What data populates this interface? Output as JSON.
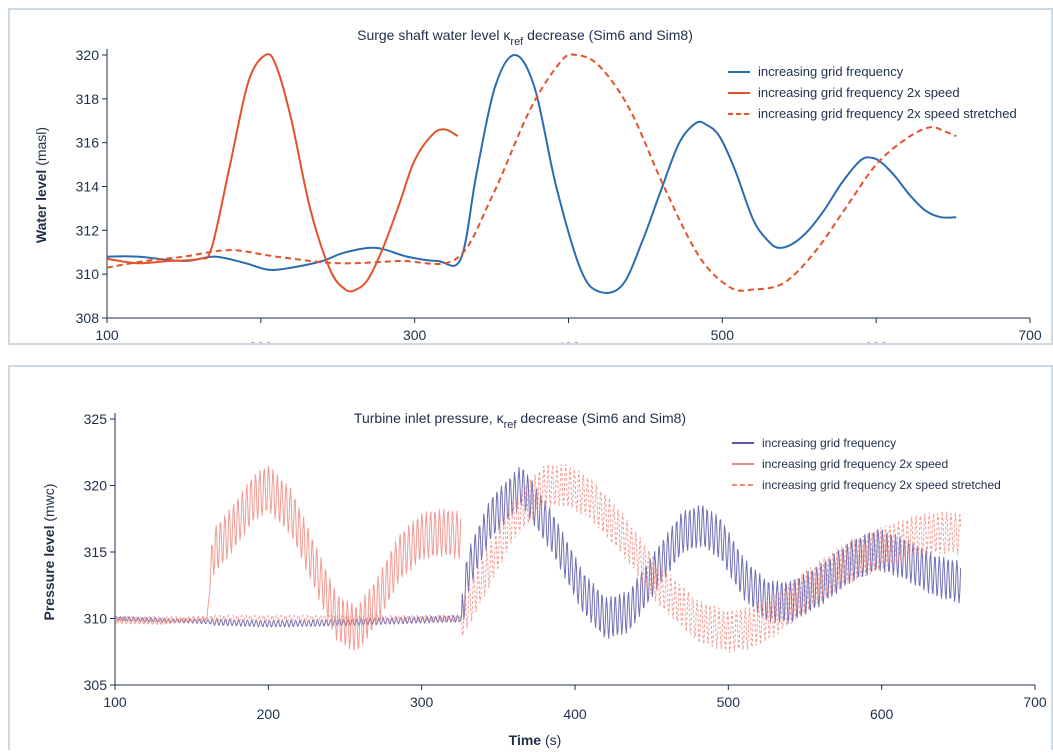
{
  "chart_data": [
    {
      "type": "line",
      "title_main": "Surge shaft water level κ",
      "title_sub": "ref",
      "title_tail": " decrease (Sim6 and Sim8)",
      "ylabel_bold": "Water level",
      "ylabel_unit": " (masl)",
      "xlabel_bold": "",
      "xlabel_unit": "",
      "xlim": [
        100,
        700
      ],
      "ylim": [
        308,
        320
      ],
      "xticks": [
        "100",
        "200",
        "300",
        "400",
        "500",
        "600",
        "700"
      ],
      "yticks": [
        "308",
        "310",
        "312",
        "314",
        "316",
        "318",
        "320"
      ],
      "grid": false,
      "legend_position": "top-right",
      "series": [
        {
          "name": "increasing grid frequency",
          "color": "#2b6cb0",
          "style": "solid",
          "x": [
            100,
            120,
            150,
            170,
            190,
            205,
            220,
            240,
            255,
            275,
            295,
            315,
            330,
            340,
            352,
            365,
            378,
            392,
            408,
            420,
            435,
            448,
            460,
            472,
            483,
            490,
            498,
            508,
            520,
            530,
            537,
            546,
            556,
            566,
            578,
            590,
            598,
            605,
            613,
            622,
            632,
            642,
            652
          ],
          "y": [
            310.8,
            310.8,
            310.6,
            310.8,
            310.5,
            310.2,
            310.3,
            310.6,
            311.0,
            311.2,
            310.8,
            310.6,
            310.7,
            314.5,
            318.5,
            320.0,
            318.5,
            314.0,
            310.2,
            309.2,
            309.5,
            311.5,
            313.8,
            316.0,
            316.9,
            316.8,
            316.3,
            314.8,
            312.5,
            311.5,
            311.2,
            311.4,
            312.0,
            312.9,
            314.2,
            315.2,
            315.3,
            315.0,
            314.4,
            313.6,
            312.9,
            312.6,
            312.6
          ]
        },
        {
          "name": "increasing grid frequency 2x speed",
          "color": "#e2522b",
          "style": "solid",
          "x": [
            100,
            120,
            140,
            160,
            168,
            180,
            192,
            203,
            210,
            220,
            232,
            245,
            255,
            262,
            270,
            280,
            290,
            300,
            312,
            320,
            328
          ],
          "y": [
            310.7,
            310.5,
            310.6,
            310.7,
            311.2,
            315.0,
            318.8,
            320.0,
            319.5,
            317.0,
            313.0,
            310.2,
            309.3,
            309.3,
            309.8,
            311.3,
            313.2,
            315.2,
            316.4,
            316.6,
            316.3
          ]
        },
        {
          "name": "increasing grid frequency 2x speed stretched",
          "color": "#e2522b",
          "style": "dashed",
          "x": [
            100,
            125,
            150,
            180,
            210,
            250,
            290,
            327,
            350,
            375,
            395,
            405,
            420,
            440,
            462,
            485,
            505,
            520,
            540,
            560,
            580,
            600,
            620,
            635,
            645,
            652
          ],
          "y": [
            310.3,
            310.6,
            310.8,
            311.1,
            310.8,
            310.5,
            310.6,
            310.7,
            313.5,
            317.5,
            319.7,
            320.0,
            319.5,
            317.5,
            314.0,
            310.8,
            309.4,
            309.3,
            309.6,
            311.0,
            313.0,
            315.0,
            316.2,
            316.7,
            316.5,
            316.3
          ]
        }
      ]
    },
    {
      "type": "line",
      "title_main": "Turbine inlet pressure, κ",
      "title_sub": "ref",
      "title_tail": " decrease (Sim6 and Sim8)",
      "ylabel_bold": "Pressure level",
      "ylabel_unit": " (mwc)",
      "xlabel_bold": "Time",
      "xlabel_unit": " (s)",
      "xlim": [
        100,
        700
      ],
      "ylim": [
        305,
        325
      ],
      "xticks": [
        "100",
        "200",
        "300",
        "400",
        "500",
        "600",
        "700"
      ],
      "yticks": [
        "305",
        "310",
        "315",
        "320",
        "325"
      ],
      "grid": false,
      "legend_position": "top-right",
      "series": [
        {
          "name": "increasing grid frequency",
          "color": "#5b57a8",
          "style": "solid",
          "oscillation": 1.6,
          "x": [
            100,
            150,
            200,
            250,
            300,
            326,
            330,
            345,
            365,
            385,
            405,
            420,
            435,
            455,
            470,
            483,
            495,
            510,
            525,
            540,
            560,
            580,
            598,
            615,
            635,
            652
          ],
          "y": [
            310.0,
            309.8,
            309.6,
            309.7,
            309.9,
            310.0,
            313.5,
            317.5,
            320.0,
            316.5,
            312.0,
            310.0,
            310.5,
            314.0,
            316.5,
            317.0,
            316.0,
            313.0,
            311.3,
            311.2,
            312.5,
            314.3,
            315.2,
            314.5,
            313.2,
            312.7
          ]
        },
        {
          "name": "increasing grid frequency 2x speed",
          "color": "#ef8c82",
          "style": "solid",
          "oscillation": 1.8,
          "x": [
            100,
            130,
            160,
            164,
            175,
            190,
            200,
            215,
            230,
            245,
            258,
            272,
            285,
            300,
            315,
            326
          ],
          "y": [
            309.8,
            309.7,
            310.0,
            315.0,
            316.5,
            319.0,
            319.8,
            318.0,
            314.0,
            310.0,
            309.2,
            311.5,
            314.5,
            316.2,
            316.5,
            316.2
          ]
        },
        {
          "name": "increasing grid frequency 2x speed stretched",
          "color": "#ef8c82",
          "style": "dashed",
          "oscillation": 1.6,
          "x": [
            100,
            150,
            200,
            250,
            300,
            326,
            340,
            360,
            380,
            395,
            410,
            430,
            455,
            480,
            500,
            515,
            530,
            550,
            575,
            600,
            625,
            645,
            652
          ],
          "y": [
            310.0,
            310.0,
            310.0,
            310.0,
            310.0,
            310.0,
            313.0,
            317.5,
            320.0,
            320.0,
            319.0,
            316.5,
            312.5,
            309.8,
            309.0,
            309.3,
            310.2,
            312.0,
            314.0,
            315.3,
            316.3,
            316.5,
            316.3
          ]
        }
      ]
    }
  ]
}
